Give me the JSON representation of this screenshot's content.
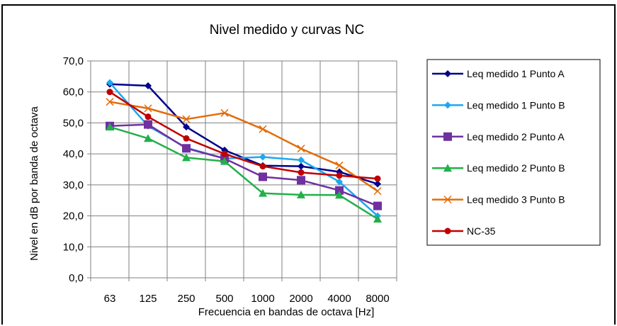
{
  "chart_data": {
    "type": "line",
    "title": "Nivel medido y curvas NC",
    "xlabel": "Frecuencia en bandas de octava [Hz]",
    "ylabel": "Nivel en dB por banda de octava",
    "categories": [
      "63",
      "125",
      "250",
      "500",
      "1000",
      "2000",
      "4000",
      "8000"
    ],
    "ylim": [
      0,
      70
    ],
    "yticks": [
      "0,0",
      "10,0",
      "20,0",
      "30,0",
      "40,0",
      "50,0",
      "60,0",
      "70,0"
    ],
    "grid": true,
    "legend_position": "right",
    "series": [
      {
        "name": "Leq medido  1 Punto A",
        "color": "#00008B",
        "marker": "diamond",
        "values": [
          62.5,
          62.0,
          48.7,
          41.2,
          36.2,
          36.0,
          34.2,
          30.3
        ]
      },
      {
        "name": "Leq medido  1 Punto B",
        "color": "#1EA8F0",
        "marker": "diamond",
        "values": [
          63.0,
          49.0,
          42.0,
          38.5,
          39.0,
          38.0,
          31.0,
          20.0
        ]
      },
      {
        "name": "Leq medido  2 Punto A",
        "color": "#7030A0",
        "marker": "square",
        "values": [
          49.0,
          49.5,
          41.8,
          38.5,
          32.6,
          31.5,
          28.2,
          23.2
        ]
      },
      {
        "name": "Leq medido  2 Punto B",
        "color": "#22B04A",
        "marker": "triangle",
        "values": [
          48.7,
          45.0,
          38.8,
          37.6,
          27.3,
          26.8,
          26.7,
          19.0
        ]
      },
      {
        "name": "Leq medido  3 Punto B",
        "color": "#E46C0A",
        "marker": "x",
        "values": [
          56.8,
          54.7,
          51.2,
          53.2,
          48.0,
          41.7,
          36.3,
          28.0
        ]
      },
      {
        "name": "NC-35",
        "color": "#C00000",
        "marker": "circle",
        "values": [
          60.0,
          52.0,
          45.0,
          40.0,
          36.0,
          34.0,
          33.0,
          32.0
        ]
      }
    ]
  }
}
